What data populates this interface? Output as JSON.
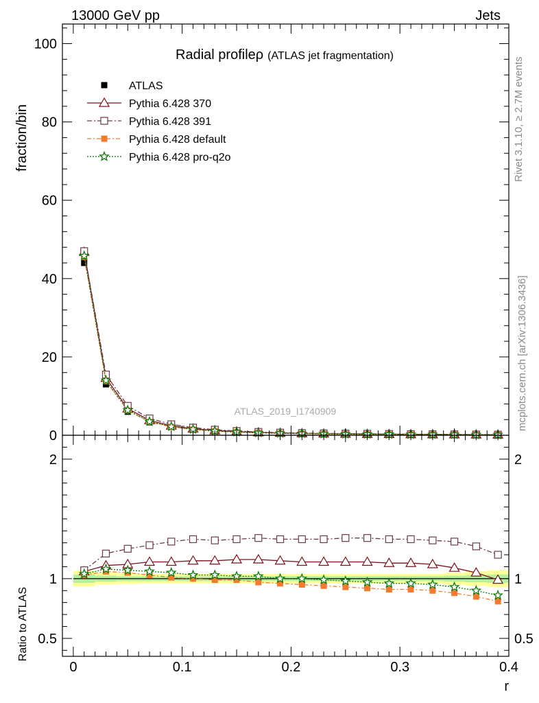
{
  "header": {
    "left": "13000 GeV pp",
    "right": "Jets"
  },
  "side": {
    "rivet": "Rivet 3.1.10, ≥ 2.7M events",
    "mcplots": "mcplots.cern.ch [arXiv:1306.3436]"
  },
  "analysis_label": "ATLAS_2019_I1740909",
  "chart_data": [
    {
      "type": "line",
      "panel": "main",
      "title_main": "Radial profile",
      "title_symbol": "ρ",
      "title_sub": "(ATLAS jet fragmentation)",
      "xlabel": "",
      "ylabel": "fraction/bin",
      "xlim": [
        -0.01,
        0.4
      ],
      "ylim": [
        0,
        105
      ],
      "yticks": [
        0,
        20,
        40,
        60,
        80,
        100
      ],
      "legend_position": "top-left",
      "x": [
        0.01,
        0.03,
        0.05,
        0.07,
        0.09,
        0.11,
        0.13,
        0.15,
        0.17,
        0.19,
        0.21,
        0.23,
        0.25,
        0.27,
        0.29,
        0.31,
        0.33,
        0.35,
        0.37,
        0.39
      ],
      "series": [
        {
          "name": "ATLAS",
          "color": "#000000",
          "marker": "square-filled",
          "values": [
            44.0,
            13.0,
            6.0,
            3.3,
            2.1,
            1.45,
            1.05,
            0.8,
            0.62,
            0.5,
            0.42,
            0.36,
            0.31,
            0.27,
            0.24,
            0.21,
            0.19,
            0.17,
            0.15,
            0.13
          ]
        },
        {
          "name": "Pythia 6.428 370",
          "color": "#7f0f1a",
          "marker": "triangle-open",
          "dash": "",
          "values": [
            46.8,
            14.6,
            6.8,
            3.8,
            2.42,
            1.68,
            1.22,
            0.93,
            0.72,
            0.58,
            0.48,
            0.41,
            0.36,
            0.31,
            0.28,
            0.24,
            0.22,
            0.19,
            0.16,
            0.13
          ]
        },
        {
          "name": "Pythia 6.428 391",
          "color": "#6b3a4a",
          "marker": "square-open",
          "dash": "7,3,2,3",
          "values": [
            47.0,
            15.5,
            7.5,
            4.3,
            2.8,
            1.95,
            1.42,
            1.08,
            0.84,
            0.67,
            0.56,
            0.48,
            0.42,
            0.37,
            0.32,
            0.28,
            0.25,
            0.22,
            0.19,
            0.16
          ]
        },
        {
          "name": "Pythia 6.428 default",
          "color": "#f47a30",
          "marker": "square-filled",
          "dash": "6,3,2,3",
          "values": [
            45.5,
            13.8,
            6.3,
            3.4,
            2.12,
            1.45,
            1.04,
            0.79,
            0.6,
            0.48,
            0.4,
            0.34,
            0.29,
            0.25,
            0.22,
            0.19,
            0.17,
            0.15,
            0.13,
            0.11
          ]
        },
        {
          "name": "Pythia 6.428 pro-q2o",
          "color": "#0b7a0b",
          "marker": "star-open",
          "dash": "2,2",
          "values": [
            45.8,
            14.0,
            6.4,
            3.5,
            2.2,
            1.5,
            1.08,
            0.82,
            0.63,
            0.5,
            0.42,
            0.35,
            0.3,
            0.26,
            0.23,
            0.2,
            0.18,
            0.16,
            0.135,
            0.115
          ]
        }
      ]
    },
    {
      "type": "line",
      "panel": "ratio",
      "xlabel": "r",
      "ylabel": "Ratio to ATLAS",
      "xlim": [
        -0.01,
        0.4
      ],
      "ylim": [
        0.35,
        2.2
      ],
      "yticks": [
        0.5,
        1,
        2
      ],
      "ytick_labels": [
        "0.5",
        "1",
        "2"
      ],
      "xticks": [
        0,
        0.1,
        0.2,
        0.3,
        0.4
      ],
      "xtick_labels": [
        "0",
        "0.1",
        "0.2",
        "0.3",
        "0.4"
      ],
      "x": [
        0.01,
        0.03,
        0.05,
        0.07,
        0.09,
        0.11,
        0.13,
        0.15,
        0.17,
        0.19,
        0.21,
        0.23,
        0.25,
        0.27,
        0.29,
        0.31,
        0.33,
        0.35,
        0.37,
        0.39
      ],
      "band_outer": [
        0.065,
        0.05,
        0.045,
        0.04,
        0.04,
        0.04,
        0.04,
        0.04,
        0.04,
        0.04,
        0.04,
        0.04,
        0.04,
        0.04,
        0.04,
        0.04,
        0.04,
        0.05,
        0.06,
        0.07
      ],
      "band_inner": [
        0.035,
        0.025,
        0.02,
        0.02,
        0.02,
        0.02,
        0.02,
        0.02,
        0.02,
        0.02,
        0.02,
        0.02,
        0.02,
        0.02,
        0.02,
        0.02,
        0.02,
        0.025,
        0.03,
        0.035
      ],
      "band_colors": {
        "outer": "#ffff99",
        "inner": "#b5f0a0"
      },
      "series": [
        {
          "name": "Pythia 6.428 370",
          "color": "#7f0f1a",
          "marker": "triangle-open",
          "dash": "",
          "values": [
            1.06,
            1.11,
            1.12,
            1.14,
            1.14,
            1.15,
            1.15,
            1.16,
            1.16,
            1.15,
            1.14,
            1.14,
            1.14,
            1.14,
            1.13,
            1.13,
            1.12,
            1.09,
            1.05,
            0.99
          ]
        },
        {
          "name": "Pythia 6.428 391",
          "color": "#6b3a4a",
          "marker": "square-open",
          "dash": "7,3,2,3",
          "values": [
            1.07,
            1.21,
            1.25,
            1.28,
            1.31,
            1.33,
            1.32,
            1.33,
            1.34,
            1.33,
            1.33,
            1.33,
            1.34,
            1.34,
            1.33,
            1.33,
            1.32,
            1.31,
            1.27,
            1.2
          ]
        },
        {
          "name": "Pythia 6.428 default",
          "color": "#f47a30",
          "marker": "square-filled",
          "dash": "6,3,2,3",
          "values": [
            1.03,
            1.06,
            1.05,
            1.03,
            1.01,
            1.0,
            0.99,
            0.99,
            0.97,
            0.96,
            0.95,
            0.94,
            0.93,
            0.92,
            0.91,
            0.91,
            0.9,
            0.88,
            0.85,
            0.81
          ]
        },
        {
          "name": "Pythia 6.428 pro-q2o",
          "color": "#0b7a0b",
          "marker": "star-open",
          "dash": "2,2",
          "values": [
            1.04,
            1.08,
            1.07,
            1.06,
            1.05,
            1.03,
            1.03,
            1.02,
            1.02,
            1.0,
            1.0,
            0.99,
            0.98,
            0.97,
            0.96,
            0.96,
            0.95,
            0.93,
            0.9,
            0.86
          ]
        }
      ]
    }
  ]
}
